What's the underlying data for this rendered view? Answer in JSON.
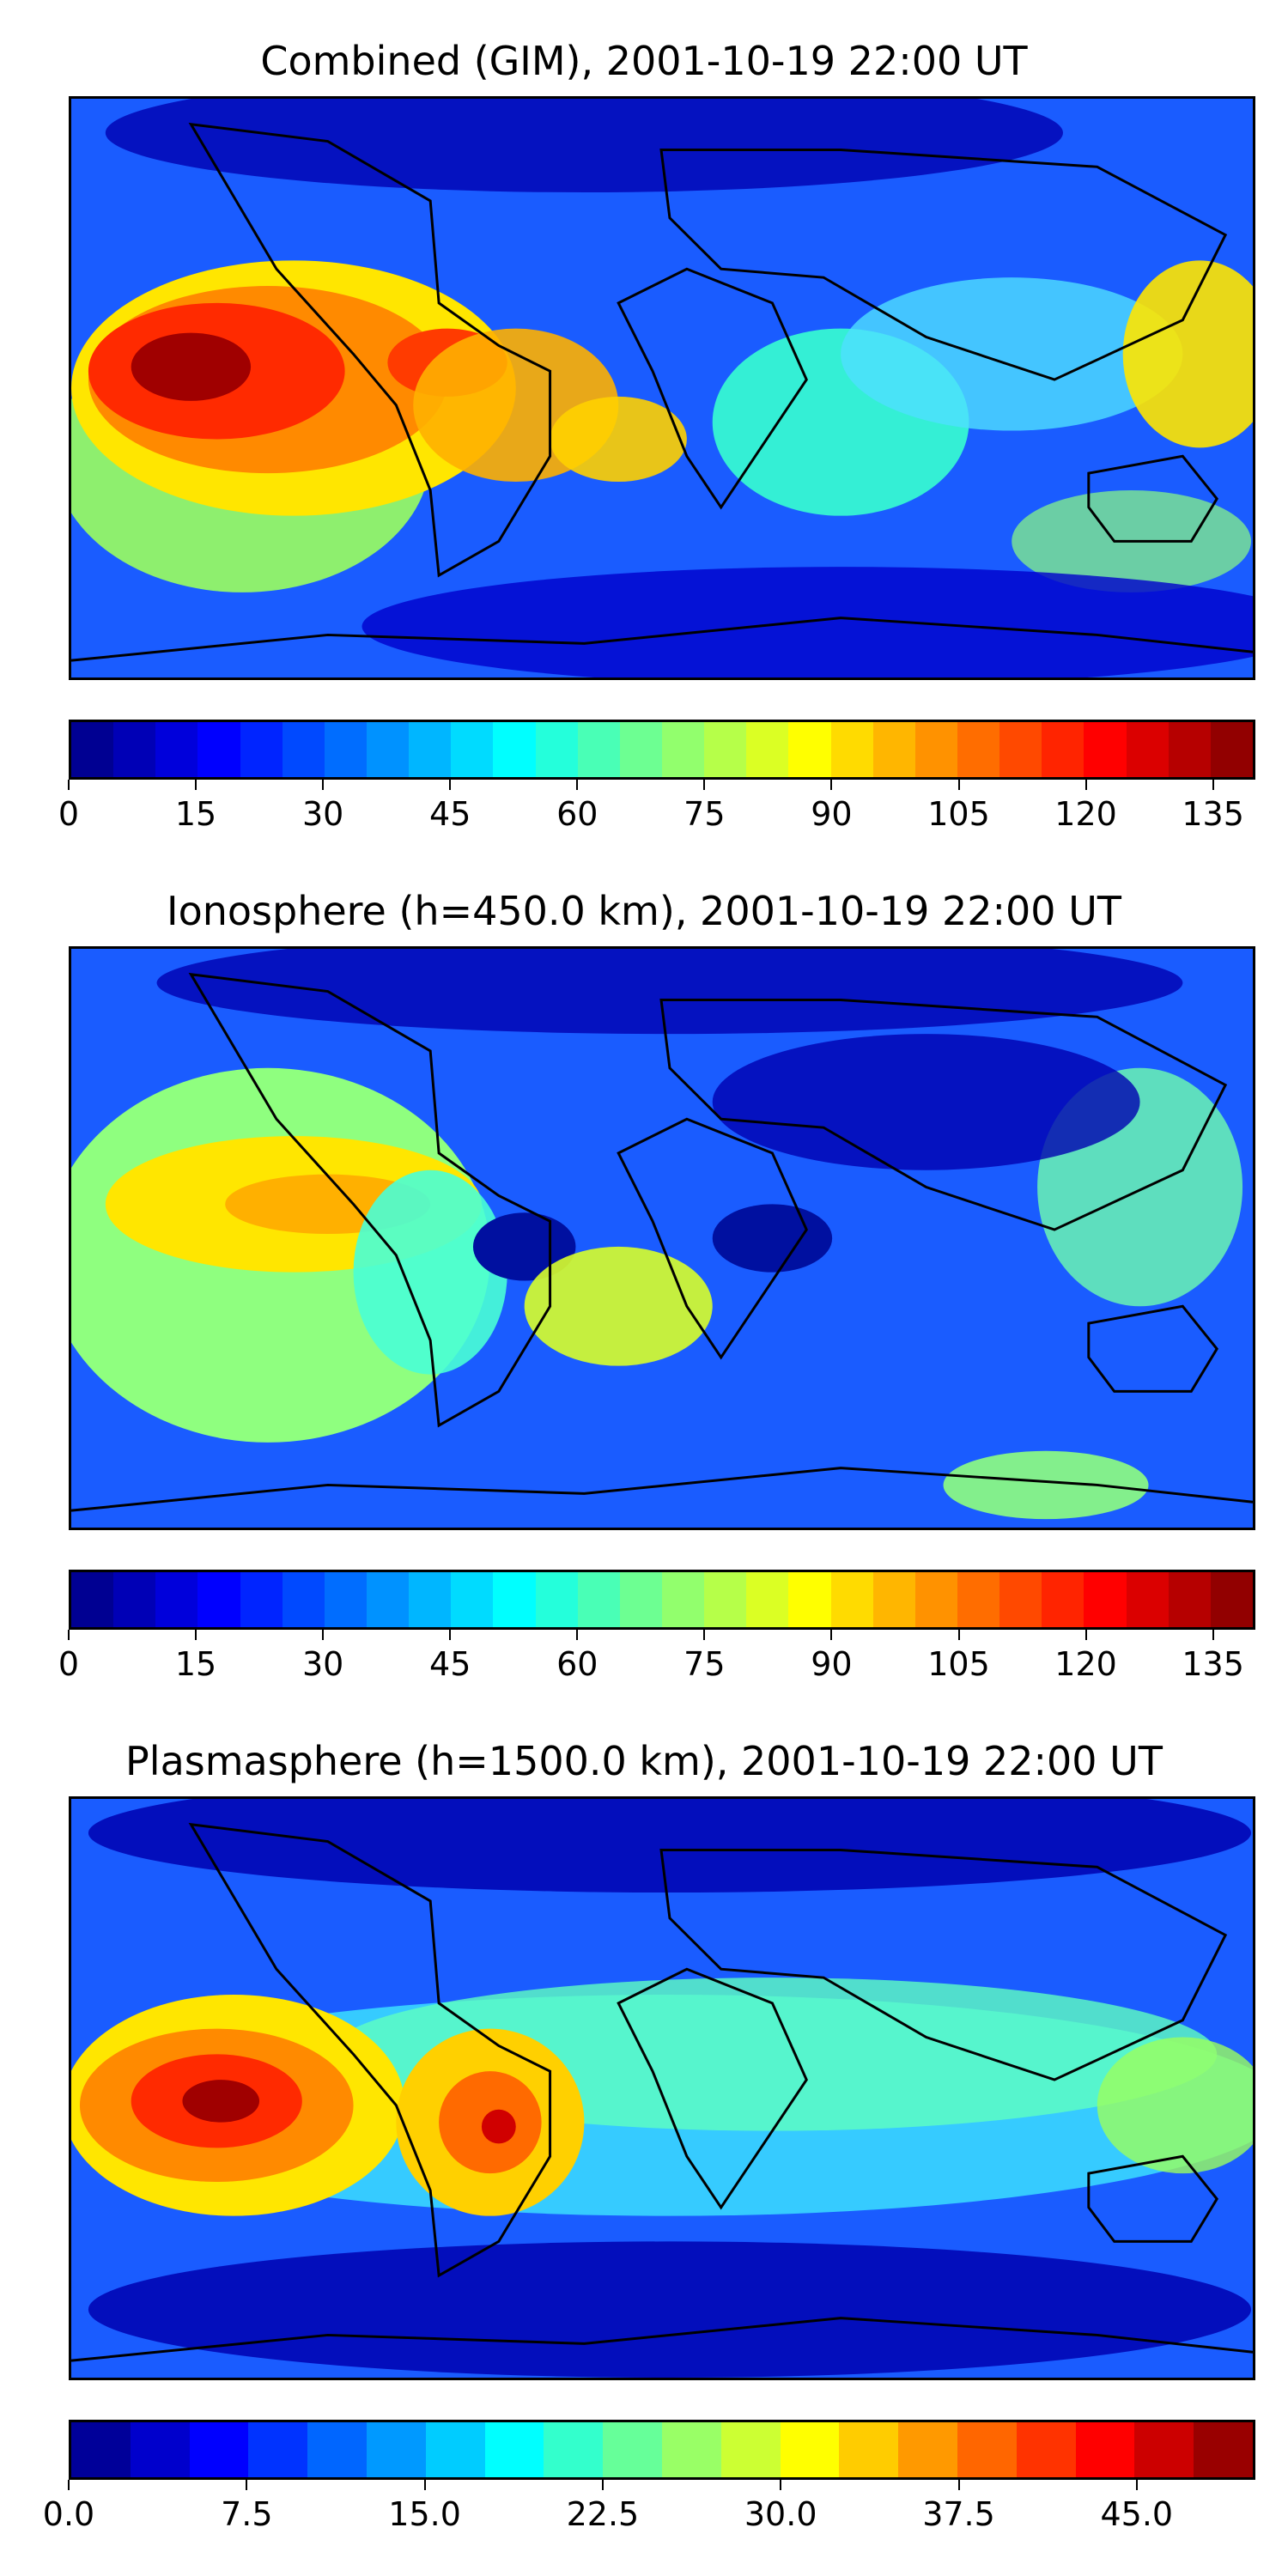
{
  "panels": [
    {
      "title": "Combined (GIM), 2001-10-19 22:00 UT",
      "colorbar": {
        "min": 0,
        "max": 140,
        "levels": 28,
        "ticks": [
          "0",
          "15",
          "30",
          "45",
          "60",
          "75",
          "90",
          "105",
          "120",
          "135"
        ],
        "tick_values": [
          0,
          15,
          30,
          45,
          60,
          75,
          90,
          105,
          120,
          135
        ]
      }
    },
    {
      "title": "Ionosphere  (h=450.0 km), 2001-10-19 22:00 UT",
      "colorbar": {
        "min": 0,
        "max": 140,
        "levels": 28,
        "ticks": [
          "0",
          "15",
          "30",
          "45",
          "60",
          "75",
          "90",
          "105",
          "120",
          "135"
        ],
        "tick_values": [
          0,
          15,
          30,
          45,
          60,
          75,
          90,
          105,
          120,
          135
        ]
      }
    },
    {
      "title": "Plasmasphere (h=1500.0 km), 2001-10-19 22:00 UT",
      "colorbar": {
        "min": 0,
        "max": 50,
        "levels": 20,
        "ticks": [
          "0.0",
          "7.5",
          "15.0",
          "22.5",
          "30.0",
          "37.5",
          "45.0"
        ],
        "tick_values": [
          0,
          7.5,
          15,
          22.5,
          30,
          37.5,
          45
        ]
      }
    }
  ],
  "colormap": "jet",
  "colors": {
    "coastline": "#000000",
    "jet": [
      "#00007f",
      "#0000ff",
      "#007fff",
      "#00ffff",
      "#7fff7f",
      "#ffff00",
      "#ff7f00",
      "#ff0000",
      "#7f0000"
    ]
  }
}
